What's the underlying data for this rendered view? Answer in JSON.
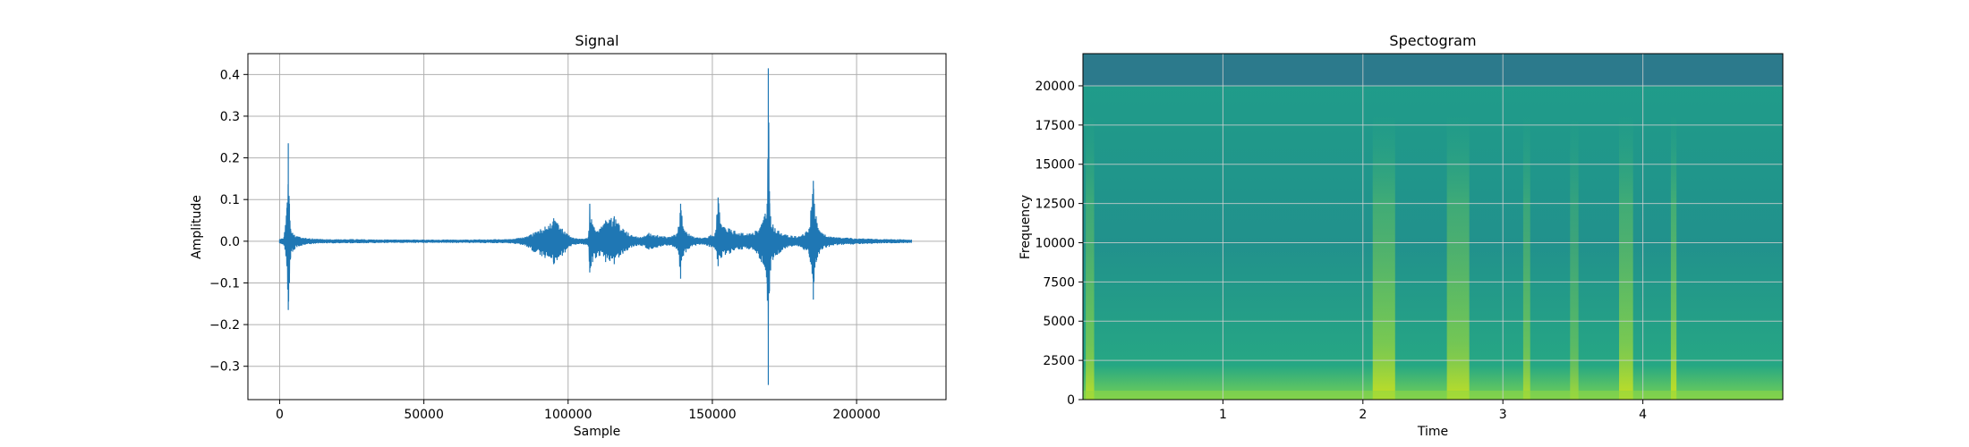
{
  "chart_data": [
    {
      "type": "line",
      "title": "Signal",
      "xlabel": "Sample",
      "ylabel": "Amplitude",
      "xlim": [
        -11000,
        231000
      ],
      "ylim": [
        -0.38,
        0.45
      ],
      "xticks": [
        0,
        50000,
        100000,
        150000,
        200000
      ],
      "xtick_labels": [
        "0",
        "50000",
        "100000",
        "150000",
        "200000"
      ],
      "yticks": [
        -0.3,
        -0.2,
        -0.1,
        0.0,
        0.1,
        0.2,
        0.3,
        0.4
      ],
      "ytick_labels": [
        "−0.3",
        "−0.2",
        "−0.1",
        "0.0",
        "0.1",
        "0.2",
        "0.3",
        "0.4"
      ],
      "grid": true,
      "color": "#1f77b4",
      "series": [
        {
          "x": [
            0,
            1500,
            2500,
            3000,
            3400,
            3800,
            4500,
            6000,
            9000,
            15000,
            25000,
            40000,
            60000,
            80000,
            85000,
            88000,
            92000,
            95000,
            98000,
            101000,
            104000,
            107000,
            107500,
            108500,
            111000,
            113000,
            116000,
            119000,
            122000,
            125000,
            128000,
            131000,
            135000,
            138000,
            139000,
            140000,
            143000,
            147000,
            151000,
            152000,
            153000,
            156000,
            160000,
            164000,
            167000,
            169000,
            169400,
            169800,
            170200,
            171000,
            173000,
            176000,
            180000,
            183500,
            185000,
            186000,
            188000,
            192000,
            198000,
            205000,
            212000,
            219000
          ],
          "y_upper": [
            0.005,
            0.01,
            0.08,
            0.235,
            0.09,
            0.03,
            0.02,
            0.012,
            0.008,
            0.005,
            0.005,
            0.004,
            0.004,
            0.005,
            0.01,
            0.02,
            0.035,
            0.055,
            0.03,
            0.01,
            0.006,
            0.01,
            0.09,
            0.04,
            0.03,
            0.05,
            0.06,
            0.03,
            0.015,
            0.01,
            0.02,
            0.015,
            0.01,
            0.02,
            0.09,
            0.03,
            0.012,
            0.008,
            0.02,
            0.105,
            0.04,
            0.03,
            0.02,
            0.02,
            0.04,
            0.09,
            0.415,
            0.12,
            0.06,
            0.04,
            0.025,
            0.015,
            0.012,
            0.03,
            0.145,
            0.06,
            0.02,
            0.01,
            0.008,
            0.006,
            0.005,
            0.004
          ],
          "y_lower": [
            -0.005,
            -0.01,
            -0.06,
            -0.165,
            -0.1,
            -0.04,
            -0.025,
            -0.014,
            -0.008,
            -0.005,
            -0.005,
            -0.004,
            -0.004,
            -0.005,
            -0.01,
            -0.025,
            -0.04,
            -0.055,
            -0.035,
            -0.012,
            -0.006,
            -0.012,
            -0.075,
            -0.05,
            -0.035,
            -0.05,
            -0.055,
            -0.03,
            -0.015,
            -0.01,
            -0.02,
            -0.015,
            -0.01,
            -0.02,
            -0.09,
            -0.035,
            -0.012,
            -0.008,
            -0.02,
            -0.06,
            -0.04,
            -0.03,
            -0.02,
            -0.02,
            -0.05,
            -0.1,
            -0.345,
            -0.12,
            -0.07,
            -0.045,
            -0.03,
            -0.015,
            -0.012,
            -0.03,
            -0.14,
            -0.05,
            -0.02,
            -0.01,
            -0.008,
            -0.006,
            -0.005,
            -0.004
          ]
        }
      ]
    },
    {
      "type": "heatmap",
      "title": "Spectogram",
      "xlabel": "Time",
      "ylabel": "Frequency",
      "xlim": [
        0,
        5
      ],
      "ylim": [
        0,
        22050
      ],
      "xticks": [
        1,
        2,
        3,
        4
      ],
      "xtick_labels": [
        "1",
        "2",
        "3",
        "4"
      ],
      "yticks": [
        0,
        2500,
        5000,
        7500,
        10000,
        12500,
        15000,
        17500,
        20000
      ],
      "ytick_labels": [
        "0",
        "2500",
        "5000",
        "7500",
        "10000",
        "12500",
        "15000",
        "17500",
        "20000"
      ],
      "grid": true,
      "colormap": "viridis",
      "cutoff_frequency": 20000,
      "time_bands": [
        {
          "t": 0.05,
          "width": 0.06,
          "intensity": 0.8
        },
        {
          "t": 2.15,
          "width": 0.16,
          "intensity": 0.9
        },
        {
          "t": 2.68,
          "width": 0.16,
          "intensity": 0.85
        },
        {
          "t": 3.17,
          "width": 0.05,
          "intensity": 0.7
        },
        {
          "t": 3.51,
          "width": 0.06,
          "intensity": 0.55
        },
        {
          "t": 3.88,
          "width": 0.1,
          "intensity": 0.9
        },
        {
          "t": 4.22,
          "width": 0.04,
          "intensity": 0.95
        }
      ]
    }
  ]
}
